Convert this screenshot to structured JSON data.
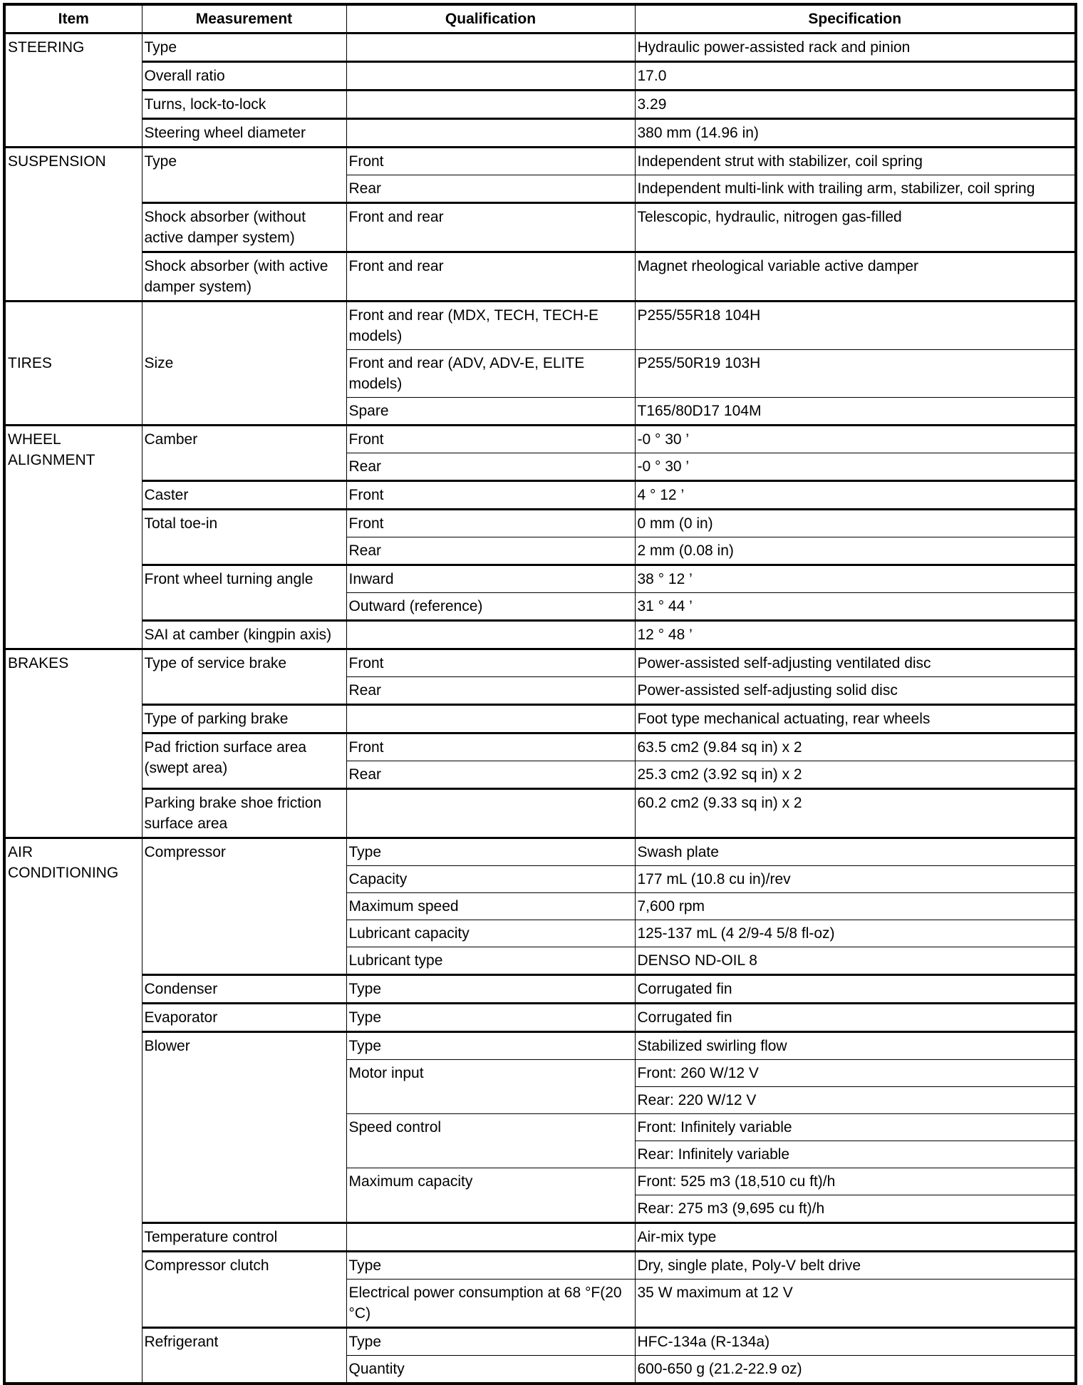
{
  "header": [
    "Item",
    "Measurement",
    "Qualification",
    "Specification"
  ],
  "groups": [
    {
      "item": "STEERING",
      "measurements": [
        {
          "name": "Type",
          "quals": [
            {
              "qual": "",
              "specs": [
                "Hydraulic power-assisted rack and pinion"
              ]
            }
          ]
        },
        {
          "name": "Overall ratio",
          "quals": [
            {
              "qual": "",
              "specs": [
                "17.0"
              ]
            }
          ]
        },
        {
          "name": "Turns, lock-to-lock",
          "quals": [
            {
              "qual": "",
              "specs": [
                "3.29"
              ]
            }
          ]
        },
        {
          "name": "Steering wheel diameter",
          "quals": [
            {
              "qual": "",
              "specs": [
                "380 mm (14.96 in)"
              ]
            }
          ]
        }
      ]
    },
    {
      "item": "SUSPENSION",
      "measurements": [
        {
          "name": "Type",
          "quals": [
            {
              "qual": "Front",
              "specs": [
                "Independent strut with stabilizer, coil spring"
              ]
            },
            {
              "qual": "Rear",
              "specs": [
                "Independent multi-link with trailing arm, stabilizer, coil spring"
              ]
            }
          ]
        },
        {
          "name": "Shock absorber (without active damper system)",
          "quals": [
            {
              "qual": "Front and rear",
              "specs": [
                "Telescopic, hydraulic, nitrogen gas-filled"
              ]
            }
          ]
        },
        {
          "name": "Shock absorber (with active damper system)",
          "quals": [
            {
              "qual": "Front and rear",
              "specs": [
                "Magnet rheological variable active damper"
              ]
            }
          ]
        }
      ]
    },
    {
      "item": "TIRES",
      "measurements": [
        {
          "name": "Size",
          "quals": [
            {
              "qual": "Front and rear (MDX, TECH, TECH-E models)",
              "specs": [
                "P255/55R18 104H"
              ]
            },
            {
              "qual": "Front and rear (ADV, ADV-E, ELITE models)",
              "specs": [
                "P255/50R19 103H"
              ]
            },
            {
              "qual": "Spare",
              "specs": [
                "T165/80D17 104M"
              ]
            }
          ]
        }
      ]
    },
    {
      "item": "WHEEL ALIGNMENT",
      "measurements": [
        {
          "name": "Camber",
          "quals": [
            {
              "qual": "Front",
              "specs": [
                "-0 ° 30 ’"
              ]
            },
            {
              "qual": "Rear",
              "specs": [
                "-0 ° 30 ’"
              ]
            }
          ]
        },
        {
          "name": "Caster",
          "quals": [
            {
              "qual": "Front",
              "specs": [
                "4 ° 12 ’"
              ]
            }
          ]
        },
        {
          "name": "Total toe-in",
          "quals": [
            {
              "qual": "Front",
              "specs": [
                "0 mm (0 in)"
              ]
            },
            {
              "qual": "Rear",
              "specs": [
                "2 mm (0.08 in)"
              ]
            }
          ]
        },
        {
          "name": "Front wheel turning angle",
          "quals": [
            {
              "qual": "Inward",
              "specs": [
                "38 ° 12 ’"
              ]
            },
            {
              "qual": "Outward (reference)",
              "specs": [
                "31 ° 44 ’"
              ]
            }
          ]
        },
        {
          "name": "SAI at camber (kingpin axis)",
          "quals": [
            {
              "qual": "",
              "specs": [
                "12 ° 48 ’"
              ]
            }
          ]
        }
      ]
    },
    {
      "item": "BRAKES",
      "measurements": [
        {
          "name": "Type of service brake",
          "quals": [
            {
              "qual": "Front",
              "specs": [
                "Power-assisted self-adjusting ventilated disc"
              ]
            },
            {
              "qual": "Rear",
              "specs": [
                "Power-assisted self-adjusting solid disc"
              ]
            }
          ]
        },
        {
          "name": "Type of parking brake",
          "quals": [
            {
              "qual": "",
              "specs": [
                "Foot type mechanical actuating, rear wheels"
              ]
            }
          ]
        },
        {
          "name": "Pad friction surface area (swept area)",
          "quals": [
            {
              "qual": "Front",
              "specs": [
                "63.5 cm2 (9.84 sq in) x 2"
              ]
            },
            {
              "qual": "Rear",
              "specs": [
                "25.3 cm2 (3.92 sq in) x 2"
              ]
            }
          ]
        },
        {
          "name": "Parking brake shoe friction surface area",
          "quals": [
            {
              "qual": "",
              "specs": [
                "60.2 cm2 (9.33 sq in) x 2"
              ]
            }
          ]
        }
      ]
    },
    {
      "item": "AIR CONDITIONING",
      "measurements": [
        {
          "name": "Compressor",
          "quals": [
            {
              "qual": "Type",
              "specs": [
                "Swash plate"
              ]
            },
            {
              "qual": "Capacity",
              "specs": [
                "177 mL (10.8 cu in)/rev"
              ]
            },
            {
              "qual": "Maximum speed",
              "specs": [
                "7,600 rpm"
              ]
            },
            {
              "qual": "Lubricant capacity",
              "specs": [
                "125-137 mL (4 2/9-4 5/8 fl-oz)"
              ]
            },
            {
              "qual": "Lubricant type",
              "specs": [
                "DENSO ND-OIL 8"
              ]
            }
          ]
        },
        {
          "name": "Condenser",
          "quals": [
            {
              "qual": "Type",
              "specs": [
                "Corrugated fin"
              ]
            }
          ]
        },
        {
          "name": "Evaporator",
          "quals": [
            {
              "qual": "Type",
              "specs": [
                "Corrugated fin"
              ]
            }
          ]
        },
        {
          "name": "Blower",
          "quals": [
            {
              "qual": "Type",
              "specs": [
                "Stabilized swirling flow"
              ]
            },
            {
              "qual": "Motor input",
              "specs": [
                "Front: 260 W/12 V",
                "Rear: 220 W/12 V"
              ]
            },
            {
              "qual": "Speed control",
              "specs": [
                "Front: Infinitely variable",
                "Rear: Infinitely variable"
              ]
            },
            {
              "qual": "Maximum capacity",
              "specs": [
                "Front: 525 m3   (18,510 cu ft)/h",
                "Rear: 275 m3   (9,695 cu ft)/h"
              ]
            }
          ]
        },
        {
          "name": "Temperature control",
          "quals": [
            {
              "qual": "",
              "specs": [
                "Air-mix type"
              ]
            }
          ]
        },
        {
          "name": "Compressor clutch",
          "quals": [
            {
              "qual": "Type",
              "specs": [
                "Dry, single plate, Poly-V belt drive"
              ]
            },
            {
              "qual": "Electrical power consumption at 68 °F(20 °C)",
              "specs": [
                "35 W maximum at 12 V"
              ]
            }
          ]
        },
        {
          "name": "Refrigerant",
          "quals": [
            {
              "qual": "Type",
              "specs": [
                "HFC-134a (R-134a)"
              ]
            },
            {
              "qual": "Quantity",
              "specs": [
                "600-650 g (21.2-22.9 oz)"
              ]
            }
          ]
        }
      ]
    }
  ]
}
